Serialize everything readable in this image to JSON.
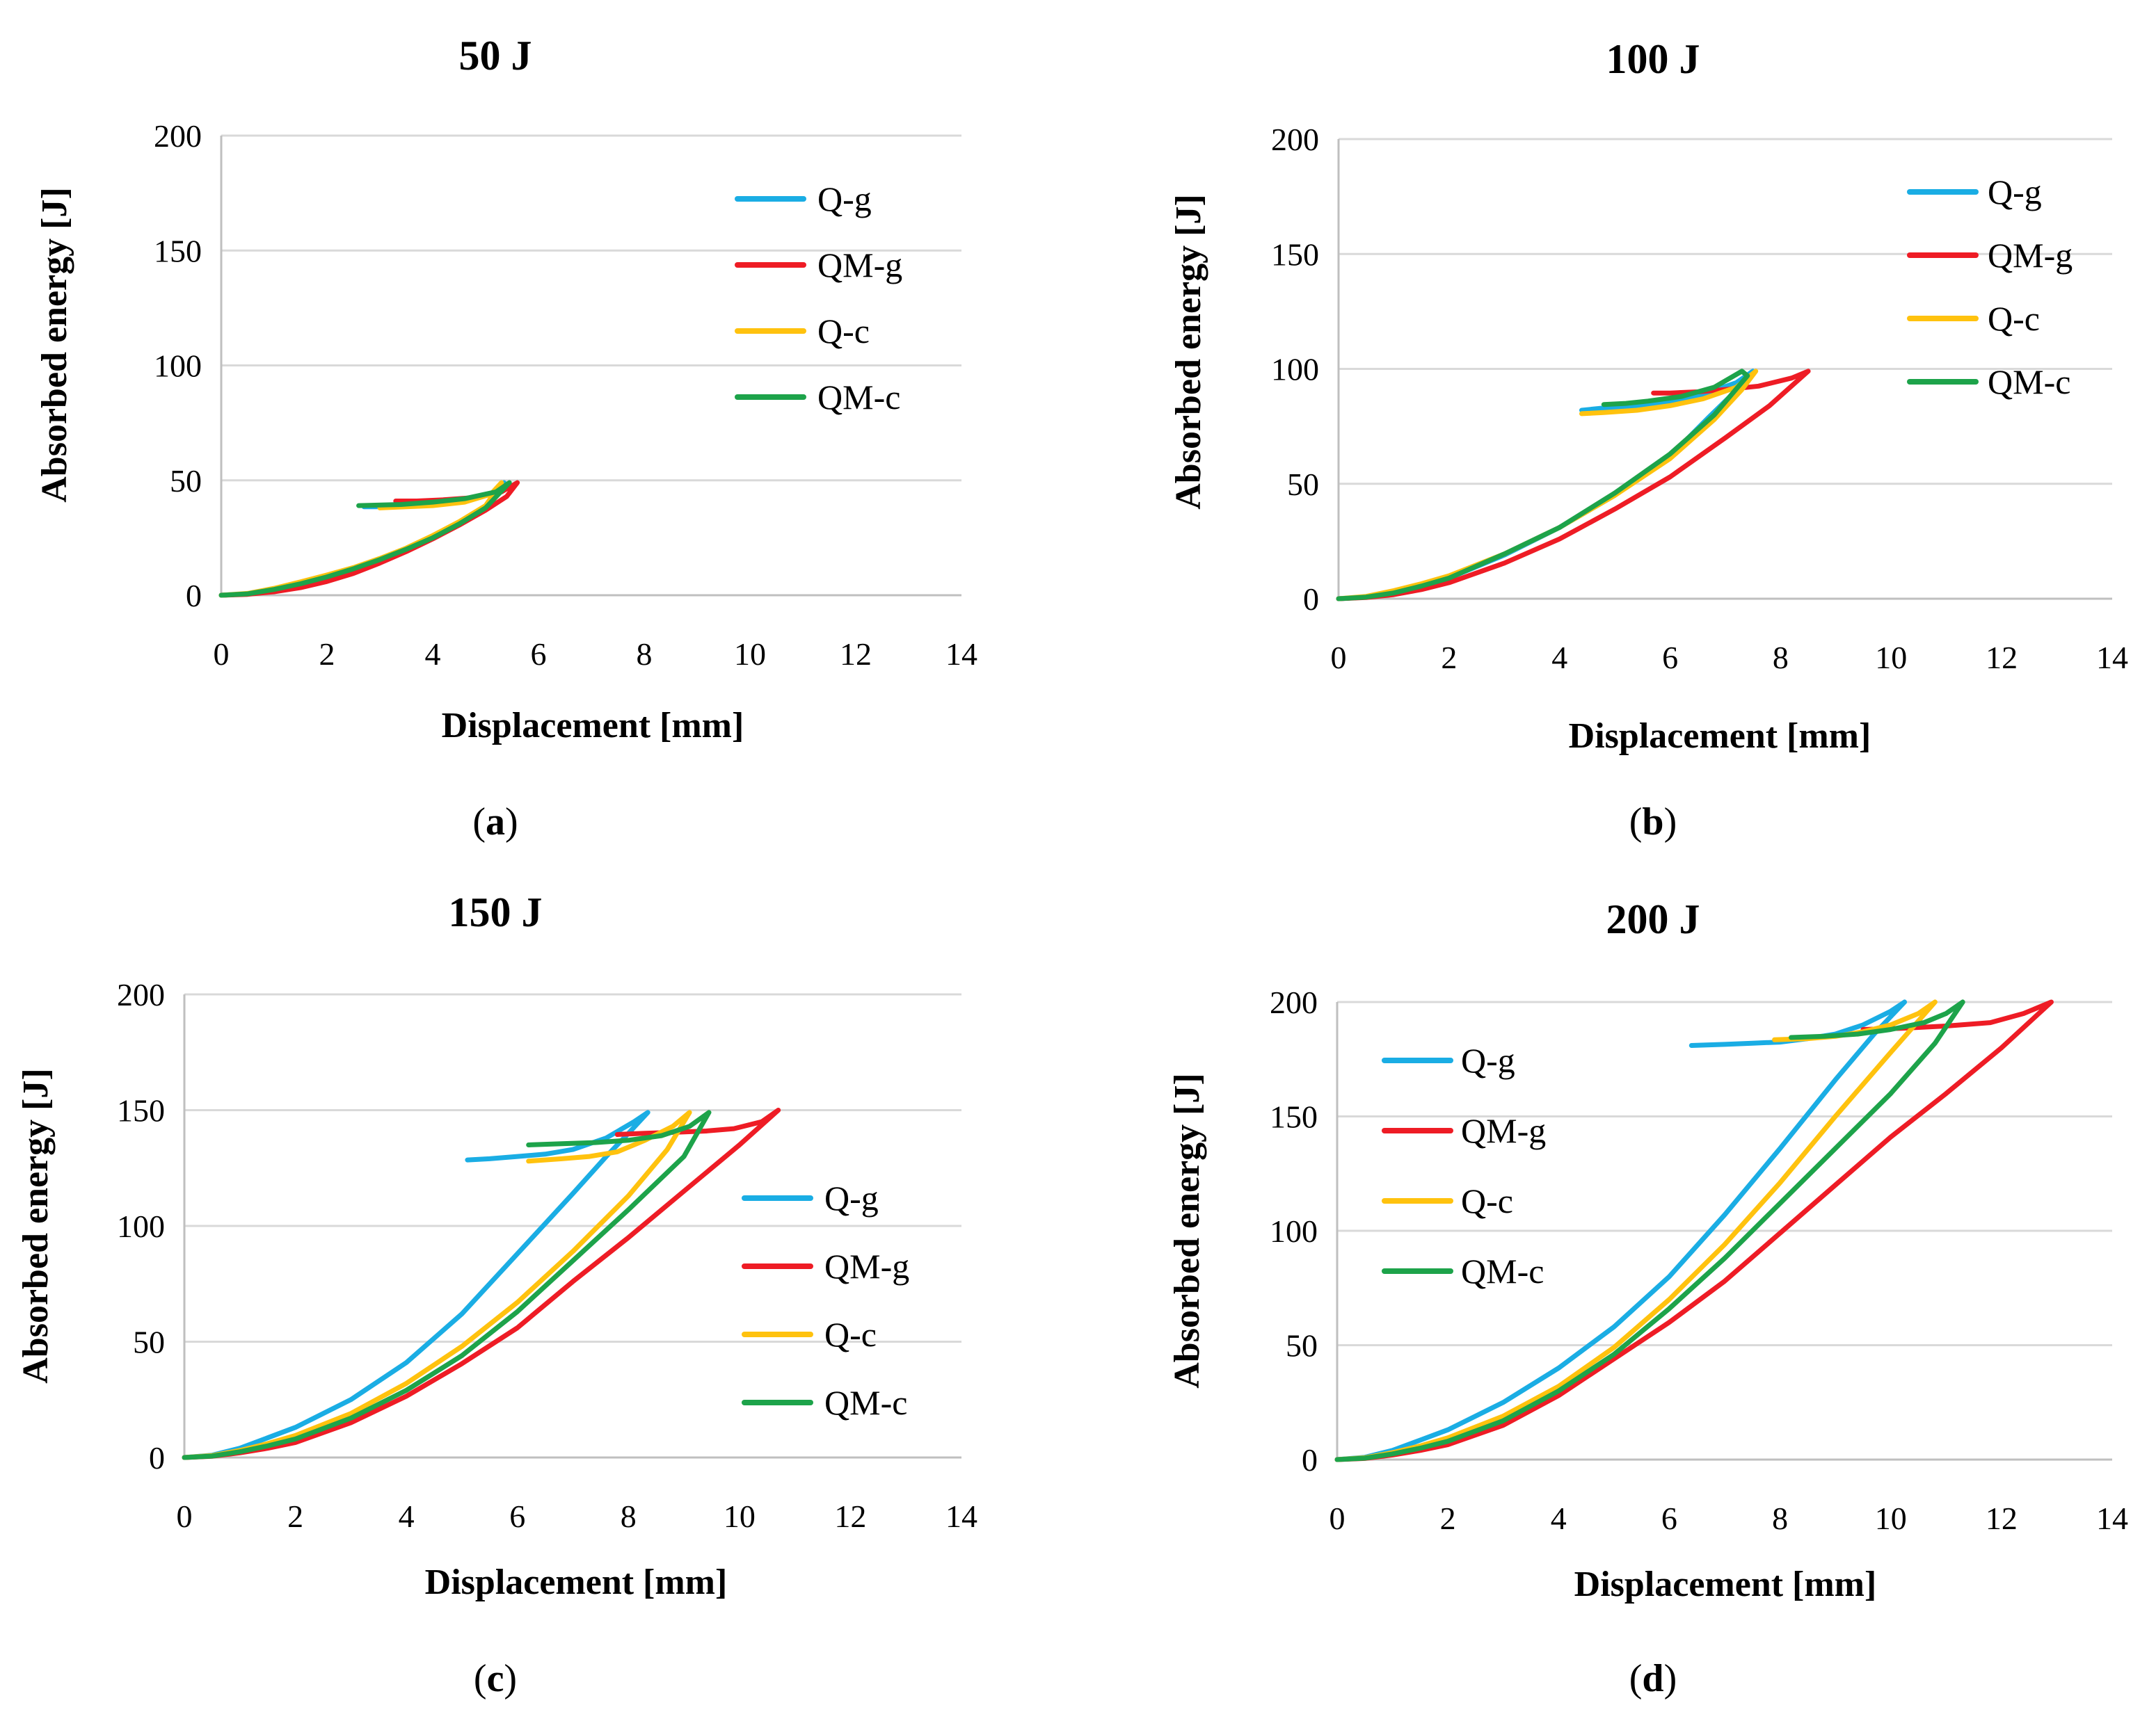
{
  "colors": {
    "Q-g": "#1aade4",
    "QM-g": "#ee1c25",
    "Q-c": "#ffc20e",
    "QM-c": "#1da34a"
  },
  "chart_data": [
    {
      "type": "line",
      "title": "50 J",
      "xlabel": "Displacement [mm]",
      "ylabel": "Absorbed energy [J]",
      "xlim": [
        0,
        14
      ],
      "ylim": [
        0,
        200
      ],
      "xticks": [
        "0",
        "2",
        "4",
        "6",
        "8",
        "10",
        "12",
        "14"
      ],
      "yticks": [
        "0",
        "50",
        "100",
        "150",
        "200"
      ],
      "grid": true,
      "legend_position": "top-right",
      "caption": "a",
      "series": [
        {
          "name": "Q-g",
          "key": "Q-g",
          "x": [
            0,
            0.5,
            1,
            1.5,
            2,
            2.5,
            3,
            3.5,
            4,
            4.5,
            5,
            5.35,
            5.1,
            4.5,
            4,
            3.5,
            3,
            2.7
          ],
          "y": [
            0,
            0.6,
            2.2,
            4.5,
            7.5,
            11,
            15,
            19.5,
            25,
            31,
            38,
            49,
            44,
            41,
            40,
            39,
            38.5,
            38.5
          ]
        },
        {
          "name": "QM-g",
          "key": "QM-g",
          "x": [
            0,
            0.5,
            1,
            1.5,
            2,
            2.5,
            3,
            3.5,
            4,
            4.5,
            5,
            5.4,
            5.6,
            5.3,
            4.8,
            4.2,
            3.7,
            3.3
          ],
          "y": [
            0,
            0.4,
            1.5,
            3.3,
            6,
            9.5,
            14,
            19,
            24.5,
            30.5,
            37,
            43,
            49,
            45,
            42.5,
            41.5,
            41,
            41
          ]
        },
        {
          "name": "Q-c",
          "key": "Q-c",
          "x": [
            0,
            0.5,
            1,
            1.5,
            2,
            2.5,
            3,
            3.5,
            4,
            4.5,
            5,
            5.3,
            5.1,
            4.6,
            4,
            3.5,
            3
          ],
          "y": [
            0,
            0.8,
            3,
            5.8,
            8.8,
            12,
            16,
            20.5,
            26,
            32,
            39,
            49,
            44,
            40.5,
            39,
            38.5,
            38
          ]
        },
        {
          "name": "QM-c",
          "key": "QM-c",
          "x": [
            0,
            0.5,
            1,
            1.5,
            2,
            2.5,
            3,
            3.5,
            4,
            4.5,
            5,
            5.45,
            5.2,
            4.6,
            4,
            3.4,
            2.6
          ],
          "y": [
            0,
            0.6,
            2.5,
            5,
            8,
            11.5,
            15.5,
            20,
            25,
            31,
            38,
            49,
            45,
            42,
            40.5,
            39.5,
            39
          ]
        }
      ]
    },
    {
      "type": "line",
      "title": "100 J",
      "xlabel": "Displacement [mm]",
      "ylabel": "Absorbed energy [J]",
      "xlim": [
        0,
        14
      ],
      "ylim": [
        0,
        200
      ],
      "xticks": [
        "0",
        "2",
        "4",
        "6",
        "8",
        "10",
        "12",
        "14"
      ],
      "yticks": [
        "0",
        "50",
        "100",
        "150",
        "200"
      ],
      "grid": true,
      "legend_position": "top-right",
      "caption": "b",
      "series": [
        {
          "name": "Q-g",
          "key": "Q-g",
          "x": [
            0,
            0.5,
            1,
            1.5,
            2,
            3,
            4,
            5,
            6,
            6.7,
            7.3,
            7.5,
            7.2,
            6.6,
            6,
            5.4,
            4.8,
            4.4
          ],
          "y": [
            0,
            0.7,
            2.5,
            5.5,
            9,
            19,
            31,
            45,
            62,
            79,
            93,
            99,
            94,
            89,
            86,
            84,
            83,
            82
          ]
        },
        {
          "name": "QM-g",
          "key": "QM-g",
          "x": [
            0,
            0.5,
            1,
            1.5,
            2,
            3,
            4,
            5,
            6,
            7,
            7.8,
            8.5,
            8.2,
            7.6,
            7,
            6.5,
            6,
            5.7
          ],
          "y": [
            0,
            0.5,
            1.8,
            4,
            7,
            15.5,
            26,
            39,
            53,
            70,
            84,
            99,
            96,
            92.5,
            91,
            90,
            89.5,
            89.5
          ]
        },
        {
          "name": "Q-c",
          "key": "Q-c",
          "x": [
            0,
            0.5,
            1,
            1.5,
            2,
            3,
            4,
            5,
            6,
            6.8,
            7.3,
            7.55,
            7.2,
            6.6,
            6,
            5.4,
            4.8,
            4.4
          ],
          "y": [
            0,
            1,
            3.5,
            6.5,
            10,
            19.5,
            31,
            45,
            61,
            78,
            91,
            99,
            92,
            87,
            84,
            82,
            81,
            80.5
          ]
        },
        {
          "name": "QM-c",
          "key": "QM-c",
          "x": [
            0,
            0.5,
            1,
            1.5,
            2,
            3,
            4,
            5,
            6,
            6.8,
            7.4,
            7.3,
            6.8,
            6.2,
            5.6,
            5.2,
            4.8
          ],
          "y": [
            0,
            0.7,
            2.5,
            5.5,
            9,
            19.5,
            31,
            46,
            63,
            80,
            97,
            99,
            92,
            88,
            86,
            85,
            84.5
          ]
        }
      ]
    },
    {
      "type": "line",
      "title": "150 J",
      "xlabel": "Displacement [mm]",
      "ylabel": "Absorbed energy [J]",
      "xlim": [
        0,
        14
      ],
      "ylim": [
        0,
        200
      ],
      "xticks": [
        "0",
        "2",
        "4",
        "6",
        "8",
        "10",
        "12",
        "14"
      ],
      "yticks": [
        "0",
        "50",
        "100",
        "150",
        "200"
      ],
      "grid": true,
      "legend_position": "right",
      "caption": "c",
      "series": [
        {
          "name": "Q-g",
          "key": "Q-g",
          "x": [
            0,
            0.5,
            1,
            1.5,
            2,
            3,
            4,
            5,
            6,
            7,
            7.6,
            8,
            8.35,
            8.1,
            7.6,
            7,
            6.5,
            6,
            5.5,
            5.1
          ],
          "y": [
            0,
            1,
            4,
            8.5,
            13,
            25,
            41,
            62,
            88,
            114,
            130,
            140,
            149,
            145,
            138,
            133,
            131,
            130,
            129,
            128.5
          ]
        },
        {
          "name": "QM-g",
          "key": "QM-g",
          "x": [
            0,
            0.5,
            1,
            1.5,
            2,
            3,
            4,
            5,
            6,
            7,
            8,
            9,
            10,
            10.7,
            10.4,
            9.9,
            9.4,
            8.9,
            8.3,
            7.8
          ],
          "y": [
            0,
            0.5,
            2,
            4,
            6.5,
            15,
            26.5,
            40.5,
            56,
            76,
            95,
            115,
            135,
            150,
            145,
            142,
            141,
            140.5,
            140,
            139.5
          ]
        },
        {
          "name": "Q-c",
          "key": "Q-c",
          "x": [
            0,
            0.5,
            1,
            1.5,
            2,
            3,
            4,
            5,
            6,
            7,
            8,
            8.7,
            9.1,
            8.8,
            8.3,
            7.8,
            7.3,
            6.8,
            6.2
          ],
          "y": [
            0,
            0.8,
            3,
            6,
            9.5,
            19,
            32,
            48,
            67,
            89,
            113,
            133,
            149,
            143,
            137,
            132,
            130,
            129,
            128
          ]
        },
        {
          "name": "QM-c",
          "key": "QM-c",
          "x": [
            0,
            0.5,
            1,
            1.5,
            2,
            3,
            4,
            5,
            6,
            7,
            8,
            9,
            9.45,
            9.1,
            8.6,
            8,
            7.4,
            6.8,
            6.2
          ],
          "y": [
            0,
            0.6,
            2.5,
            5,
            8,
            17,
            29,
            44,
            63,
            85,
            107,
            130,
            149,
            143,
            139,
            137,
            136,
            135.5,
            135
          ]
        }
      ]
    },
    {
      "type": "line",
      "title": "200 J",
      "xlabel": "Displacement [mm]",
      "ylabel": "Absorbed energy [J]",
      "xlim": [
        0,
        14
      ],
      "ylim": [
        0,
        200
      ],
      "xticks": [
        "0",
        "2",
        "4",
        "6",
        "8",
        "10",
        "12",
        "14"
      ],
      "yticks": [
        "0",
        "50",
        "100",
        "150",
        "200"
      ],
      "grid": true,
      "legend_position": "top-left",
      "caption": "d",
      "series": [
        {
          "name": "Q-g",
          "key": "Q-g",
          "x": [
            0,
            0.5,
            1,
            1.5,
            2,
            3,
            4,
            5,
            6,
            7,
            8,
            9,
            9.7,
            10.25,
            10,
            9.5,
            9,
            8.5,
            8,
            7.5,
            7,
            6.4
          ],
          "y": [
            0,
            1,
            4,
            8.5,
            13,
            25,
            40,
            58,
            80,
            107,
            136,
            166,
            186,
            200,
            196,
            190,
            186,
            184,
            182.5,
            182,
            181.5,
            181
          ]
        },
        {
          "name": "QM-g",
          "key": "QM-g",
          "x": [
            0,
            0.5,
            1,
            1.5,
            2,
            3,
            4,
            5,
            6,
            7,
            8,
            9,
            10,
            11,
            12,
            12.9,
            12.4,
            11.8,
            11,
            10.2,
            9.5
          ],
          "y": [
            0,
            0.5,
            2,
            4,
            6.5,
            15,
            28,
            44,
            60,
            78,
            99,
            120,
            141,
            160,
            180,
            200,
            195,
            191,
            189.5,
            188.5,
            188
          ]
        },
        {
          "name": "Q-c",
          "key": "Q-c",
          "x": [
            0,
            0.5,
            1,
            1.5,
            2,
            3,
            4,
            5,
            6,
            7,
            8,
            9,
            10,
            10.8,
            10.5,
            10,
            9.5,
            9,
            8.5,
            7.9
          ],
          "y": [
            0,
            0.8,
            3,
            6,
            9.5,
            19,
            32,
            49,
            70,
            94,
            121,
            150,
            178,
            200,
            195,
            190,
            187,
            185,
            184,
            183.5
          ]
        },
        {
          "name": "QM-c",
          "key": "QM-c",
          "x": [
            0,
            0.5,
            1,
            1.5,
            2,
            3,
            4,
            5,
            6,
            7,
            8,
            9,
            10,
            10.8,
            11.3,
            11,
            10.6,
            10,
            9.4,
            8.8,
            8.2
          ],
          "y": [
            0,
            0.6,
            2.5,
            5,
            8,
            17,
            30,
            46,
            66,
            88,
            112,
            136,
            160,
            182,
            200,
            195,
            191,
            188,
            186,
            185,
            184.5
          ]
        }
      ]
    }
  ]
}
